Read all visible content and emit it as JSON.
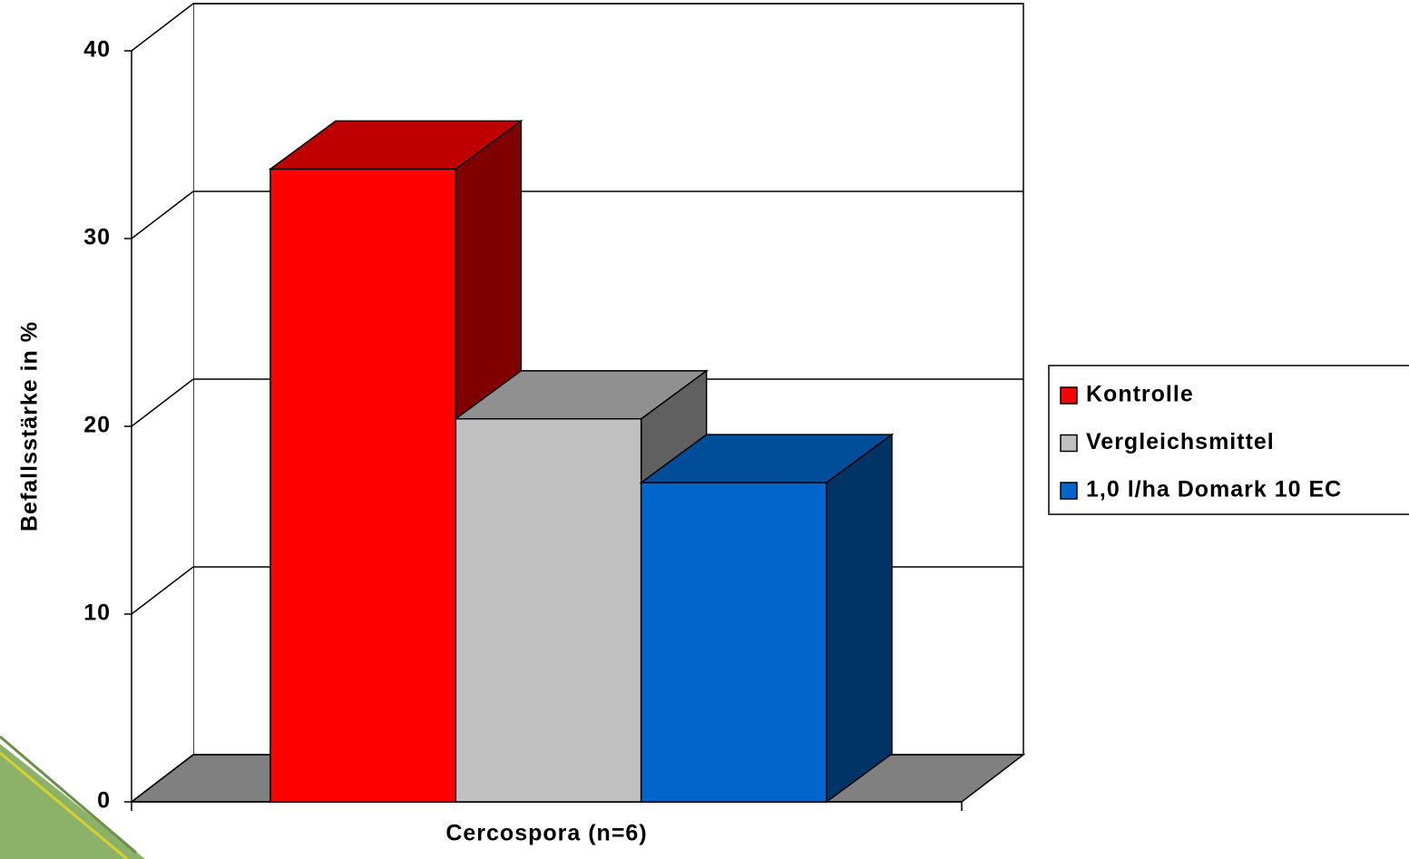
{
  "chart_data": {
    "type": "bar3d",
    "y_label": "Befallsstärke in %",
    "categories": [
      "Cercospora (n=6)"
    ],
    "series": [
      {
        "name": "Kontrolle",
        "color": "#ff0000",
        "values": [
          33.7
        ]
      },
      {
        "name": "Vergleichsmittel",
        "color": "#c0c0c0",
        "values": [
          20.4
        ]
      },
      {
        "name": "1,0 l/ha Domark 10 EC",
        "color": "#0066cc",
        "values": [
          17.0
        ]
      }
    ],
    "ylim": [
      0,
      40
    ],
    "yticks": [
      0,
      10,
      20,
      30,
      40
    ],
    "grid": true,
    "legend": "right"
  }
}
